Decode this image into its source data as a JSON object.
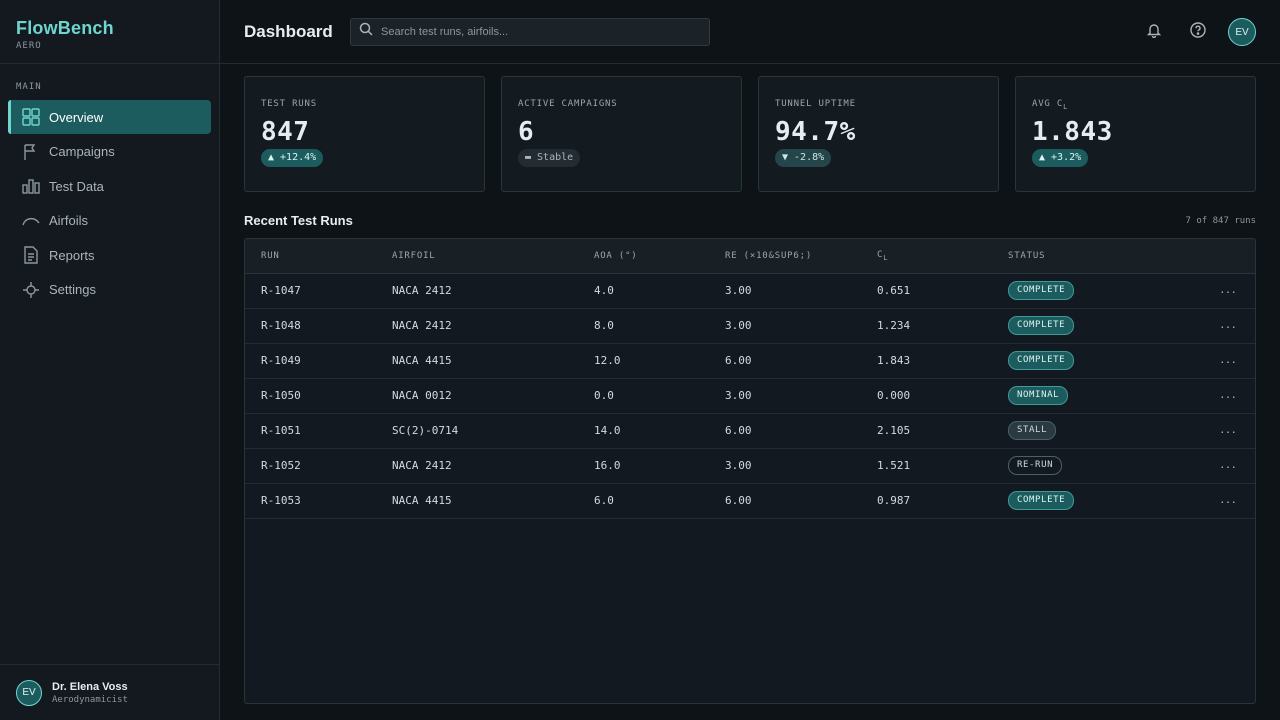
{
  "brand": {
    "name": "FlowBench",
    "subtitle": "AERO"
  },
  "sidebar": {
    "section_label": "MAIN",
    "items": [
      {
        "label": "Overview",
        "icon": "grid-icon",
        "active": true
      },
      {
        "label": "Campaigns",
        "icon": "flag-icon"
      },
      {
        "label": "Test Data",
        "icon": "bar-chart-icon"
      },
      {
        "label": "Airfoils",
        "icon": "airfoil-icon"
      },
      {
        "label": "Reports",
        "icon": "document-icon"
      },
      {
        "label": "Settings",
        "icon": "settings-icon"
      }
    ]
  },
  "user": {
    "initials": "EV",
    "name": "Dr. Elena Voss",
    "role": "Aerodynamicist"
  },
  "header": {
    "title": "Dashboard",
    "search_placeholder": "Search test runs, airfoils..."
  },
  "stats": [
    {
      "label": "TEST RUNS",
      "value": "847",
      "delta": "▲ +12.4%",
      "trend": "up"
    },
    {
      "label": "ACTIVE CAMPAIGNS",
      "value": "6",
      "delta": "▬ Stable",
      "trend": "flat"
    },
    {
      "label": "TUNNEL UPTIME",
      "value": "94.7%",
      "delta": "▼ -2.8%",
      "trend": "down"
    },
    {
      "label": "AVG C",
      "label_sub": "L",
      "value": "1.843",
      "delta": "▲ +3.2%",
      "trend": "up"
    }
  ],
  "recent": {
    "title": "Recent Test Runs",
    "count": "7 of 847 runs",
    "columns": {
      "run": "RUN",
      "airfoil": "AIRFOIL",
      "aoa": "AOA (°)",
      "re": "RE (×10&SUP6;)",
      "cl": "C",
      "cl_sub": "L",
      "status": "STATUS"
    },
    "rows": [
      {
        "run": "R-1047",
        "airfoil": "NACA 2412",
        "aoa": "4.0",
        "re": "3.00",
        "cl": "0.651",
        "status": "COMPLETE"
      },
      {
        "run": "R-1048",
        "airfoil": "NACA 2412",
        "aoa": "8.0",
        "re": "3.00",
        "cl": "1.234",
        "status": "COMPLETE"
      },
      {
        "run": "R-1049",
        "airfoil": "NACA 4415",
        "aoa": "12.0",
        "re": "6.00",
        "cl": "1.843",
        "status": "COMPLETE"
      },
      {
        "run": "R-1050",
        "airfoil": "NACA 0012",
        "aoa": "0.0",
        "re": "3.00",
        "cl": "0.000",
        "status": "NOMINAL"
      },
      {
        "run": "R-1051",
        "airfoil": "SC(2)-0714",
        "aoa": "14.0",
        "re": "6.00",
        "cl": "2.105",
        "status": "STALL"
      },
      {
        "run": "R-1052",
        "airfoil": "NACA 2412",
        "aoa": "16.0",
        "re": "3.00",
        "cl": "1.521",
        "status": "RE-RUN"
      },
      {
        "run": "R-1053",
        "airfoil": "NACA 4415",
        "aoa": "6.0",
        "re": "6.00",
        "cl": "0.987",
        "status": "COMPLETE"
      }
    ],
    "row_action": "···"
  },
  "colors": {
    "accent": "#6fd6cf",
    "active_bg": "#1d5c5e",
    "background": "#0e1318"
  }
}
